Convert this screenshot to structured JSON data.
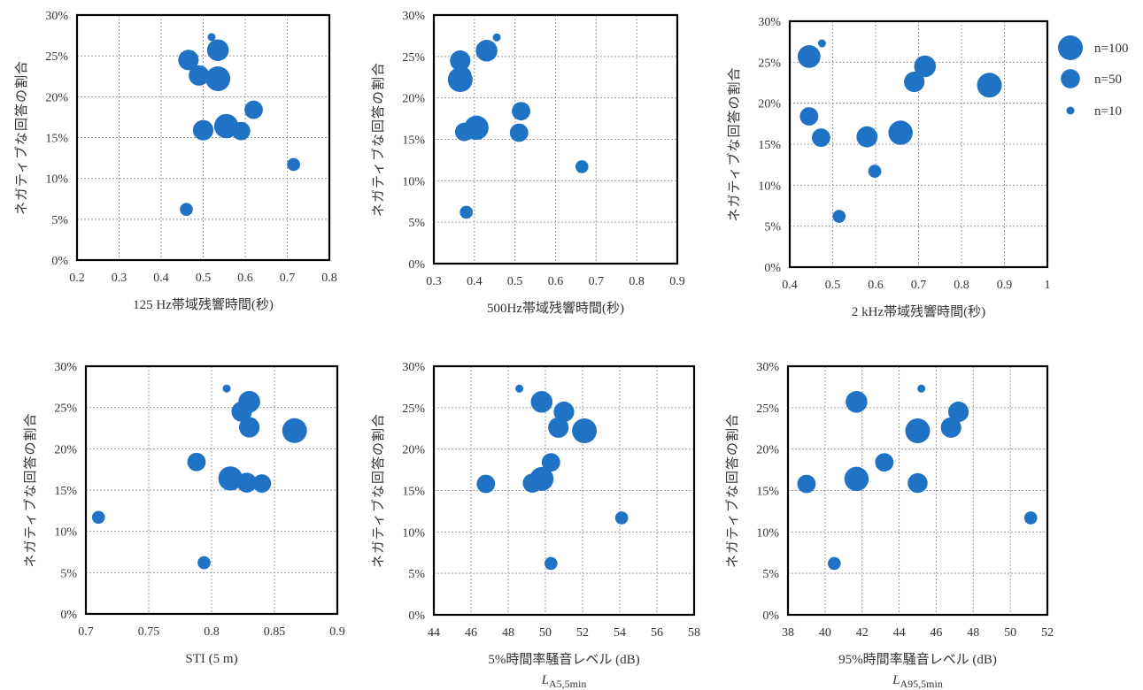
{
  "colors": {
    "bubble": "#1f72c4",
    "grid": "#9a9a9a",
    "frame": "#000000"
  },
  "legend": {
    "placement": "right",
    "items": [
      {
        "label": "n=100",
        "n": 100
      },
      {
        "label": "n=50",
        "n": 50
      },
      {
        "label": "n=10",
        "n": 10
      }
    ]
  },
  "chart_data": [
    {
      "type": "scatter",
      "xlabel": "125 Hz帯域残響時間(秒)",
      "xsub": {
        "main": "",
        "sub": ""
      },
      "ylabel": "ネガティブな回答の割合",
      "xlim": [
        0.2,
        0.8
      ],
      "xticks": [
        "0.2",
        "0.3",
        "0.4",
        "0.5",
        "0.6",
        "0.7",
        "0.8"
      ],
      "ylim": [
        0,
        30
      ],
      "yticks": [
        "0%",
        "5%",
        "10%",
        "15%",
        "20%",
        "25%",
        "30%"
      ],
      "points": [
        {
          "x": 0.52,
          "y": 27.3,
          "n": 10
        },
        {
          "x": 0.465,
          "y": 24.5,
          "n": 60
        },
        {
          "x": 0.535,
          "y": 25.7,
          "n": 70
        },
        {
          "x": 0.49,
          "y": 22.6,
          "n": 60
        },
        {
          "x": 0.535,
          "y": 22.2,
          "n": 100
        },
        {
          "x": 0.62,
          "y": 18.4,
          "n": 45
        },
        {
          "x": 0.5,
          "y": 15.9,
          "n": 60
        },
        {
          "x": 0.555,
          "y": 16.4,
          "n": 95
        },
        {
          "x": 0.59,
          "y": 15.8,
          "n": 45
        },
        {
          "x": 0.715,
          "y": 11.7,
          "n": 18
        },
        {
          "x": 0.46,
          "y": 6.2,
          "n": 18
        }
      ]
    },
    {
      "type": "scatter",
      "xlabel": "500Hz帯域残響時間(秒)",
      "xsub": {
        "main": "",
        "sub": ""
      },
      "ylabel": "ネガティブな回答の割合",
      "xlim": [
        0.3,
        0.9
      ],
      "xticks": [
        "0.3",
        "0.4",
        "0.5",
        "0.6",
        "0.7",
        "0.8",
        "0.9"
      ],
      "ylim": [
        0,
        30
      ],
      "yticks": [
        "0%",
        "5%",
        "10%",
        "15%",
        "20%",
        "25%",
        "30%"
      ],
      "points": [
        {
          "x": 0.455,
          "y": 27.3,
          "n": 10
        },
        {
          "x": 0.365,
          "y": 24.5,
          "n": 60
        },
        {
          "x": 0.43,
          "y": 25.7,
          "n": 70
        },
        {
          "x": 0.368,
          "y": 22.6,
          "n": 60
        },
        {
          "x": 0.365,
          "y": 22.2,
          "n": 100
        },
        {
          "x": 0.515,
          "y": 18.4,
          "n": 45
        },
        {
          "x": 0.375,
          "y": 15.9,
          "n": 45
        },
        {
          "x": 0.405,
          "y": 16.4,
          "n": 95
        },
        {
          "x": 0.51,
          "y": 15.8,
          "n": 45
        },
        {
          "x": 0.665,
          "y": 11.7,
          "n": 18
        },
        {
          "x": 0.38,
          "y": 6.2,
          "n": 18
        }
      ]
    },
    {
      "type": "scatter",
      "xlabel": "2 kHz帯域残響時間(秒)",
      "xsub": {
        "main": "",
        "sub": ""
      },
      "ylabel": "ネガティブな回答の割合",
      "xlim": [
        0.4,
        1.0
      ],
      "xticks": [
        "0.4",
        "0.5",
        "0.6",
        "0.7",
        "0.8",
        "0.9",
        "1"
      ],
      "ylim": [
        0,
        30
      ],
      "yticks": [
        "0%",
        "5%",
        "10%",
        "15%",
        "20%",
        "25%",
        "30%"
      ],
      "points": [
        {
          "x": 0.475,
          "y": 27.3,
          "n": 10
        },
        {
          "x": 0.445,
          "y": 25.7,
          "n": 80
        },
        {
          "x": 0.715,
          "y": 24.5,
          "n": 70
        },
        {
          "x": 0.69,
          "y": 22.6,
          "n": 60
        },
        {
          "x": 0.865,
          "y": 22.2,
          "n": 100
        },
        {
          "x": 0.445,
          "y": 18.4,
          "n": 45
        },
        {
          "x": 0.473,
          "y": 15.8,
          "n": 45
        },
        {
          "x": 0.58,
          "y": 15.9,
          "n": 65
        },
        {
          "x": 0.658,
          "y": 16.4,
          "n": 95
        },
        {
          "x": 0.598,
          "y": 11.7,
          "n": 18
        },
        {
          "x": 0.515,
          "y": 6.2,
          "n": 18
        }
      ]
    },
    {
      "type": "scatter",
      "xlabel": "STI (5 m)",
      "xsub": {
        "main": "",
        "sub": ""
      },
      "ylabel": "ネガティブな回答の割合",
      "xlim": [
        0.7,
        0.9
      ],
      "xticks": [
        "0.7",
        "0.75",
        "0.8",
        "0.85",
        "0.9"
      ],
      "ylim": [
        0,
        30
      ],
      "yticks": [
        "0%",
        "5%",
        "10%",
        "15%",
        "20%",
        "25%",
        "30%"
      ],
      "points": [
        {
          "x": 0.812,
          "y": 27.3,
          "n": 10
        },
        {
          "x": 0.824,
          "y": 24.5,
          "n": 60
        },
        {
          "x": 0.83,
          "y": 25.7,
          "n": 70
        },
        {
          "x": 0.83,
          "y": 22.6,
          "n": 60
        },
        {
          "x": 0.866,
          "y": 22.2,
          "n": 100
        },
        {
          "x": 0.788,
          "y": 18.4,
          "n": 45
        },
        {
          "x": 0.815,
          "y": 16.4,
          "n": 95
        },
        {
          "x": 0.828,
          "y": 15.9,
          "n": 55
        },
        {
          "x": 0.84,
          "y": 15.8,
          "n": 45
        },
        {
          "x": 0.71,
          "y": 11.7,
          "n": 18
        },
        {
          "x": 0.794,
          "y": 6.2,
          "n": 18
        }
      ]
    },
    {
      "type": "scatter",
      "xlabel": "5%時間率騒音レベル (dB)",
      "xsub": {
        "main": "L",
        "sub": "A5,5min"
      },
      "ylabel": "ネガティブな回答の割合",
      "xlim": [
        44,
        58
      ],
      "xticks": [
        "44",
        "46",
        "48",
        "50",
        "52",
        "54",
        "56",
        "58"
      ],
      "ylim": [
        0,
        30
      ],
      "yticks": [
        "0%",
        "5%",
        "10%",
        "15%",
        "20%",
        "25%",
        "30%"
      ],
      "points": [
        {
          "x": 48.6,
          "y": 27.3,
          "n": 10
        },
        {
          "x": 49.8,
          "y": 25.7,
          "n": 70
        },
        {
          "x": 51.0,
          "y": 24.5,
          "n": 60
        },
        {
          "x": 50.7,
          "y": 22.6,
          "n": 60
        },
        {
          "x": 52.1,
          "y": 22.2,
          "n": 100
        },
        {
          "x": 50.3,
          "y": 18.4,
          "n": 45
        },
        {
          "x": 46.8,
          "y": 15.8,
          "n": 45
        },
        {
          "x": 49.3,
          "y": 15.9,
          "n": 50
        },
        {
          "x": 49.8,
          "y": 16.4,
          "n": 90
        },
        {
          "x": 54.1,
          "y": 11.7,
          "n": 18
        },
        {
          "x": 50.3,
          "y": 6.2,
          "n": 18
        }
      ]
    },
    {
      "type": "scatter",
      "xlabel": "95%時間率騒音レベル (dB)",
      "xsub": {
        "main": "L",
        "sub": "A95,5min"
      },
      "ylabel": "ネガティブな回答の割合",
      "xlim": [
        38,
        52
      ],
      "xticks": [
        "38",
        "40",
        "42",
        "44",
        "46",
        "48",
        "50",
        "52"
      ],
      "ylim": [
        0,
        30
      ],
      "yticks": [
        "0%",
        "5%",
        "10%",
        "15%",
        "20%",
        "25%",
        "30%"
      ],
      "points": [
        {
          "x": 45.2,
          "y": 27.3,
          "n": 10
        },
        {
          "x": 41.7,
          "y": 25.7,
          "n": 70
        },
        {
          "x": 47.2,
          "y": 24.5,
          "n": 60
        },
        {
          "x": 46.8,
          "y": 22.6,
          "n": 60
        },
        {
          "x": 45.0,
          "y": 22.2,
          "n": 100
        },
        {
          "x": 43.2,
          "y": 18.4,
          "n": 45
        },
        {
          "x": 39.0,
          "y": 15.8,
          "n": 45
        },
        {
          "x": 41.7,
          "y": 16.4,
          "n": 95
        },
        {
          "x": 45.0,
          "y": 15.9,
          "n": 55
        },
        {
          "x": 51.1,
          "y": 11.7,
          "n": 18
        },
        {
          "x": 40.5,
          "y": 6.2,
          "n": 18
        }
      ]
    }
  ]
}
